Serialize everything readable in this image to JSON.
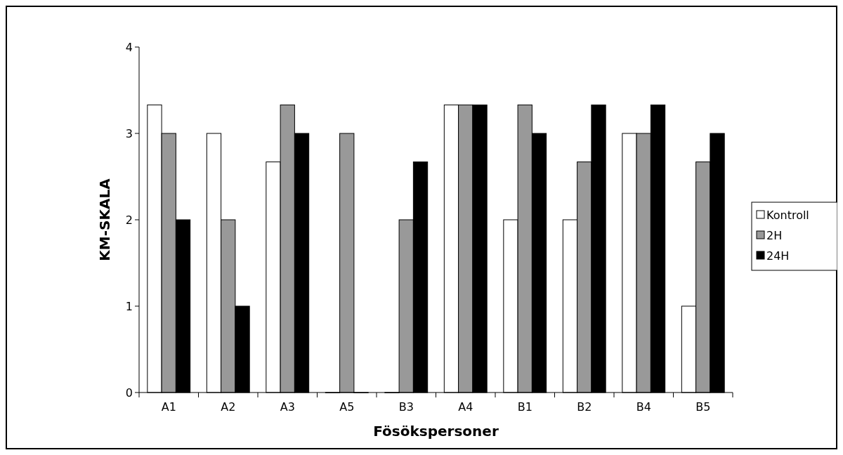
{
  "chart_data": {
    "type": "bar",
    "xlabel": "Fösökspersoner",
    "ylabel": "KM-SKALA",
    "categories": [
      "A1",
      "A2",
      "A3",
      "A5",
      "B3",
      "A4",
      "B1",
      "B2",
      "B4",
      "B5"
    ],
    "series": [
      {
        "name": "Kontroll",
        "color": "#ffffff",
        "values": [
          3.33,
          3,
          2.67,
          0,
          0,
          3.33,
          2,
          2,
          3,
          1
        ]
      },
      {
        "name": "2H",
        "color": "#999999",
        "values": [
          3,
          2,
          3.33,
          3,
          2,
          3.33,
          3.33,
          2.67,
          3,
          2.67
        ]
      },
      {
        "name": "24H",
        "color": "#000000",
        "values": [
          2,
          1,
          3,
          0,
          2.67,
          3.33,
          3,
          3.33,
          3.33,
          3
        ]
      }
    ],
    "ylim": [
      0,
      4
    ],
    "yticks": [
      0,
      1,
      2,
      3,
      4
    ],
    "legend": "right"
  }
}
